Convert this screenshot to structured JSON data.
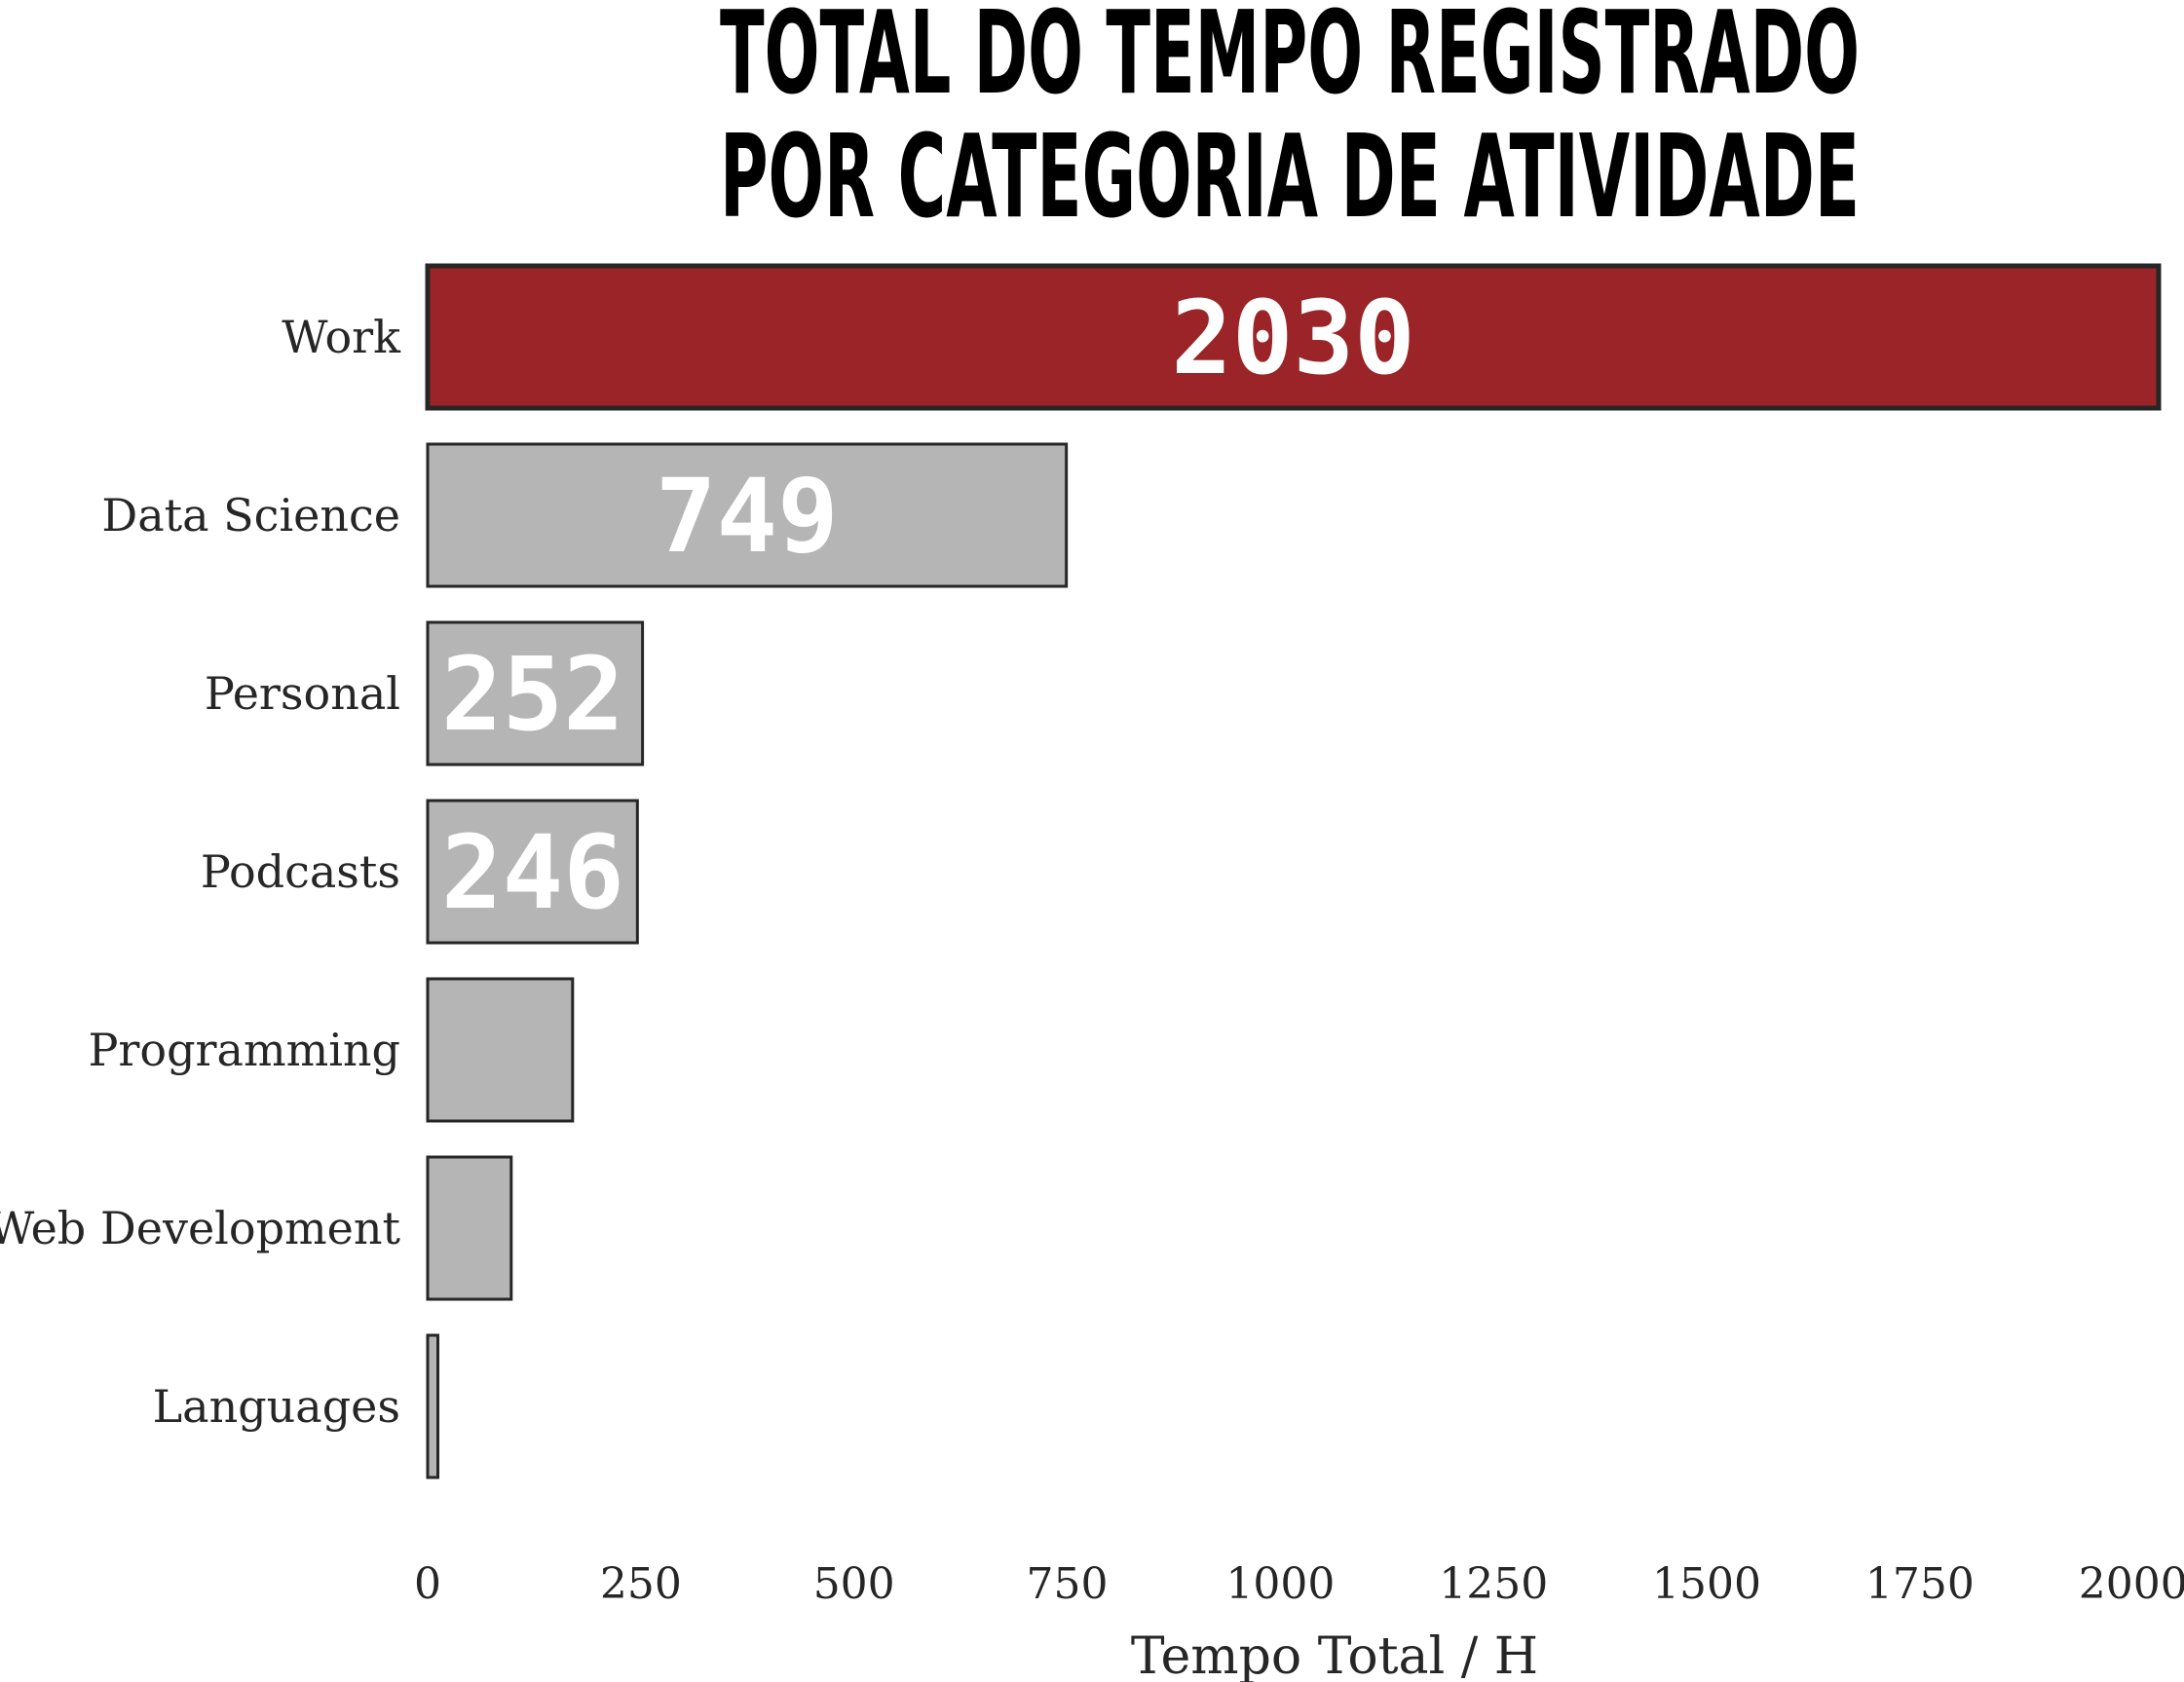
{
  "chart_data": {
    "type": "bar",
    "orientation": "horizontal",
    "title": "TOTAL DO TEMPO REGISTRADO\nPOR CATEGORIA DE ATIVIDADE",
    "title_lines": [
      "TOTAL DO TEMPO REGISTRADO",
      "POR CATEGORIA DE ATIVIDADE"
    ],
    "xlabel": "Tempo Total / H",
    "ylabel": "",
    "xlim": [
      0,
      2030
    ],
    "xticks": [
      "0",
      "250",
      "500",
      "750",
      "1000",
      "1250",
      "1500",
      "1750",
      "2000"
    ],
    "grid": false,
    "categories": [
      "Work",
      "Data Science",
      "Personal",
      "Podcasts",
      "Programming",
      "Web Development",
      "Languages"
    ],
    "values": [
      2030,
      749,
      252,
      246,
      170,
      98,
      12
    ],
    "data_labels": [
      "2030",
      "749",
      "252",
      "246",
      "",
      "",
      ""
    ],
    "colors": {
      "highlight": "#9a2427",
      "bar": "#b5b5b5",
      "edge": "#262626",
      "label": "#ffffff",
      "text": "#262626",
      "title": "#000000"
    }
  }
}
